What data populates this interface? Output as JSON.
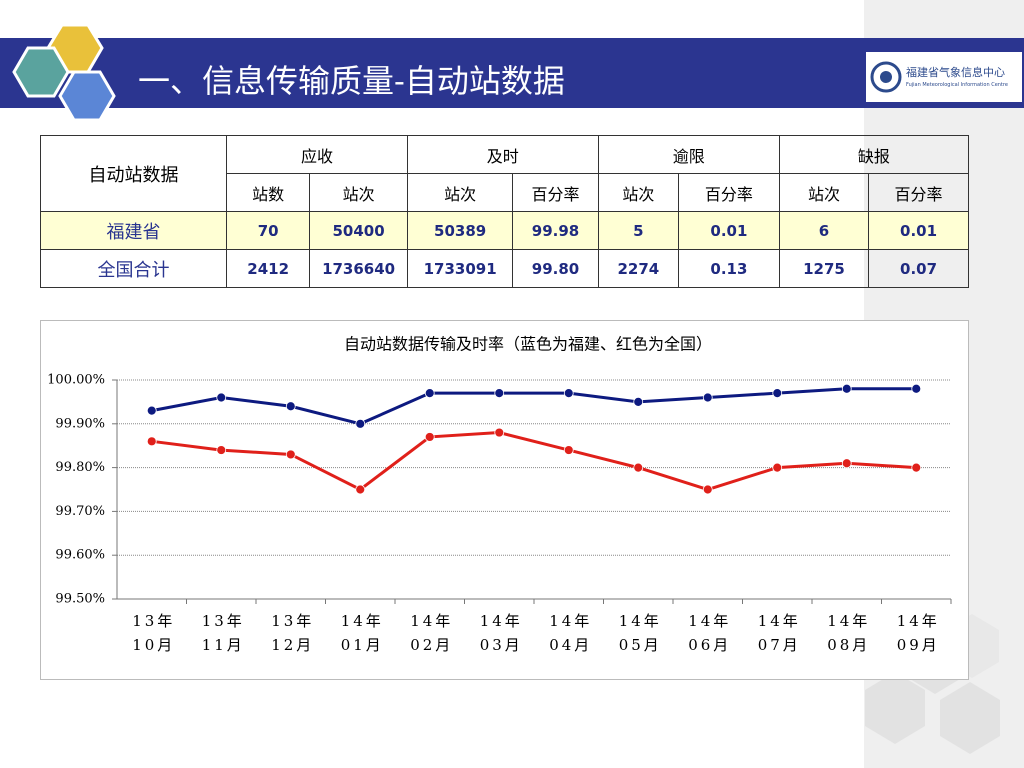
{
  "header": {
    "title": "一、信息传输质量-自动站数据",
    "logo": "福建省气象信息中心",
    "logo_sub": "Fujian Meteorological Information Centre"
  },
  "table": {
    "header_rows": [
      [
        "自动站数据",
        "应收",
        "及时",
        "逾限",
        "缺报"
      ],
      [
        "站数",
        "站次",
        "站次",
        "百分率",
        "站次",
        "百分率",
        "站次",
        "百分率"
      ]
    ],
    "rows": [
      [
        "福建省",
        "70",
        "50400",
        "50389",
        "99.98",
        "5",
        "0.01",
        "6",
        "0.01"
      ],
      [
        "全国合计",
        "2412",
        "1736640",
        "1733091",
        "99.80",
        "2274",
        "0.13",
        "1275",
        "0.07"
      ]
    ]
  },
  "chart_data": {
    "type": "line",
    "title": "自动站数据传输及时率（蓝色为福建、红色为全国）",
    "categories": [
      "13年10月",
      "13年11月",
      "13年12月",
      "14年01月",
      "14年02月",
      "14年03月",
      "14年04月",
      "14年05月",
      "14年06月",
      "14年07月",
      "14年08月",
      "14年09月"
    ],
    "series": [
      {
        "color": "#0d1a80",
        "values": [
          99.93,
          99.96,
          99.94,
          99.9,
          99.97,
          99.97,
          99.97,
          99.95,
          99.96,
          99.97,
          99.98,
          99.98
        ]
      },
      {
        "color": "#e0201a",
        "values": [
          99.86,
          99.84,
          99.83,
          99.75,
          99.87,
          99.88,
          99.84,
          99.8,
          99.75,
          99.8,
          99.81,
          99.8
        ]
      }
    ],
    "ylim": [
      99.5,
      100
    ],
    "yticks": [
      {
        "value": 99.5,
        "label": "99.50%"
      },
      {
        "value": 99.6,
        "label": "99.60%"
      },
      {
        "value": 99.7,
        "label": "99.70%"
      },
      {
        "value": 99.8,
        "label": "99.80%"
      },
      {
        "value": 99.9,
        "label": "99.90%"
      },
      {
        "value": 100,
        "label": "100.00%"
      }
    ],
    "grid": true
  }
}
